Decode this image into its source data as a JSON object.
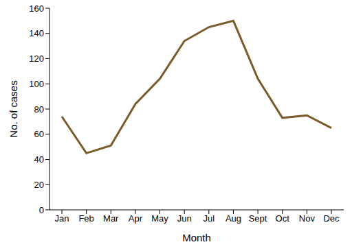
{
  "chart_data": {
    "type": "line",
    "x_label": "Month",
    "y_label": "No. of cases",
    "categories": [
      "Jan",
      "Feb",
      "Mar",
      "Apr",
      "May",
      "Jun",
      "Jul",
      "Aug",
      "Sept",
      "Oct",
      "Nov",
      "Dec"
    ],
    "values": [
      74,
      45,
      51,
      84,
      104,
      134,
      145,
      150,
      104,
      73,
      75,
      65
    ],
    "color": "#7b5a2c",
    "ylim": [
      0,
      160
    ],
    "yticks": [
      0,
      20,
      40,
      60,
      80,
      100,
      120,
      140,
      160
    ],
    "grid": false
  }
}
